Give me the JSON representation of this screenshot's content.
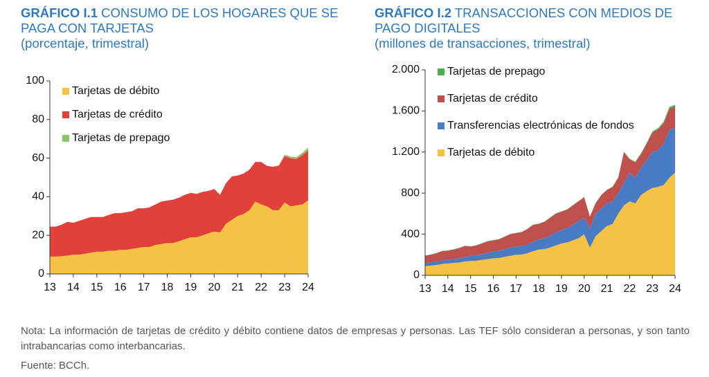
{
  "chart_data": [
    {
      "type": "stacked-area",
      "title_label": "GRÁFICO I.1",
      "title": "CONSUMO DE LOS HOGARES QUE SE PAGA CON TARJETAS",
      "subtitle": "(porcentaje, trimestral)",
      "x": [
        13,
        13.25,
        13.5,
        13.75,
        14,
        14.25,
        14.5,
        14.75,
        15,
        15.25,
        15.5,
        15.75,
        16,
        16.25,
        16.5,
        16.75,
        17,
        17.25,
        17.5,
        17.75,
        18,
        18.25,
        18.5,
        18.75,
        19,
        19.25,
        19.5,
        19.75,
        20,
        20.25,
        20.5,
        20.75,
        21,
        21.25,
        21.5,
        21.75,
        22,
        22.25,
        22.5,
        22.75,
        23,
        23.25,
        23.5,
        23.75,
        24
      ],
      "xlim": [
        13,
        24
      ],
      "xticks": [
        13,
        14,
        15,
        16,
        17,
        18,
        19,
        20,
        21,
        22,
        23,
        24
      ],
      "ylim": [
        0,
        100
      ],
      "yticks": [
        0,
        20,
        40,
        60,
        80,
        100
      ],
      "legend": "top-left",
      "legend_reversed": false,
      "series": [
        {
          "name": "Tarjetas de débito",
          "color": "#f5c243",
          "values": [
            9,
            9,
            9.2,
            9.5,
            10,
            10,
            10.5,
            11,
            11.5,
            11.5,
            12,
            12,
            12.5,
            12.5,
            13,
            13.5,
            14,
            14,
            15,
            15.5,
            16,
            16,
            17,
            18,
            19,
            19,
            20,
            21,
            22,
            21.5,
            26,
            28,
            30,
            31,
            33,
            37.5,
            36,
            35,
            33,
            33,
            37,
            35,
            35.5,
            36,
            38
          ]
        },
        {
          "name": "Tarjetas de crédito",
          "color": "#e2403a",
          "values": [
            15.5,
            15.5,
            16.3,
            17.5,
            16.5,
            17.5,
            18,
            18.5,
            18,
            18,
            18.5,
            19.5,
            19,
            19.5,
            19.5,
            20.5,
            20,
            20.5,
            21,
            22,
            22,
            22.5,
            22.5,
            23,
            23,
            22.5,
            22.5,
            22,
            22,
            19.5,
            21,
            22.5,
            21,
            21,
            21,
            20.5,
            22,
            21,
            22.5,
            23,
            24,
            25,
            24,
            25.5,
            26
          ]
        },
        {
          "name": "Tarjetas de prepago",
          "color": "#8fc26a",
          "values": [
            0,
            0,
            0,
            0,
            0,
            0,
            0,
            0,
            0,
            0,
            0,
            0,
            0,
            0,
            0,
            0,
            0,
            0,
            0,
            0,
            0,
            0,
            0,
            0,
            0,
            0,
            0,
            0,
            0,
            0,
            0,
            0,
            0,
            0,
            0,
            0,
            0,
            0,
            0,
            0.3,
            0.8,
            0.8,
            1,
            1.2,
            1.5
          ]
        }
      ]
    },
    {
      "type": "stacked-area",
      "title_label": "GRÁFICO I.2",
      "title": "TRANSACCIONES CON MEDIOS DE PAGO DIGITALES",
      "subtitle": "(millones de transacciones, trimestral)",
      "x": [
        13,
        13.25,
        13.5,
        13.75,
        14,
        14.25,
        14.5,
        14.75,
        15,
        15.25,
        15.5,
        15.75,
        16,
        16.25,
        16.5,
        16.75,
        17,
        17.25,
        17.5,
        17.75,
        18,
        18.25,
        18.5,
        18.75,
        19,
        19.25,
        19.5,
        19.75,
        20,
        20.25,
        20.5,
        20.75,
        21,
        21.25,
        21.5,
        21.75,
        22,
        22.25,
        22.5,
        22.75,
        23,
        23.25,
        23.5,
        23.75,
        24
      ],
      "xlim": [
        13,
        24
      ],
      "xticks": [
        13,
        14,
        15,
        16,
        17,
        18,
        19,
        20,
        21,
        22,
        23,
        24
      ],
      "ylim": [
        0,
        2000
      ],
      "yticks": [
        0,
        400,
        800,
        {
          "value": 1200,
          "label": "1.200"
        },
        {
          "value": 1600,
          "label": "1.600"
        },
        {
          "value": 2000,
          "label": "2.000"
        }
      ],
      "legend": "top-left",
      "legend_reversed": true,
      "series": [
        {
          "name": "Tarjetas de débito",
          "color": "#f5c243",
          "values": [
            90,
            95,
            100,
            110,
            115,
            120,
            125,
            135,
            140,
            142,
            150,
            158,
            165,
            168,
            180,
            190,
            200,
            202,
            215,
            235,
            250,
            255,
            270,
            290,
            310,
            320,
            340,
            360,
            400,
            270,
            380,
            430,
            480,
            500,
            600,
            680,
            720,
            700,
            780,
            820,
            850,
            860,
            880,
            950,
            1000
          ]
        },
        {
          "name": "Transferencias electrónicas de fondos",
          "color": "#4a7cc5",
          "values": [
            30,
            30,
            35,
            35,
            35,
            38,
            40,
            43,
            50,
            53,
            55,
            60,
            65,
            72,
            75,
            80,
            80,
            83,
            85,
            90,
            100,
            105,
            115,
            130,
            130,
            140,
            150,
            170,
            160,
            190,
            220,
            220,
            220,
            220,
            200,
            220,
            280,
            250,
            270,
            300,
            350,
            360,
            400,
            470,
            430
          ]
        },
        {
          "name": "Tarjetas de crédito",
          "color": "#c0504d",
          "values": [
            70,
            75,
            80,
            90,
            90,
            92,
            100,
            107,
            90,
            95,
            105,
            112,
            110,
            110,
            120,
            130,
            130,
            135,
            150,
            165,
            150,
            160,
            175,
            180,
            180,
            180,
            190,
            190,
            200,
            110,
            100,
            130,
            130,
            140,
            150,
            300,
            130,
            150,
            130,
            160,
            190,
            200,
            200,
            200,
            210
          ]
        },
        {
          "name": "Tarjetas de prepago",
          "color": "#4caf50",
          "values": [
            3,
            3,
            3,
            3,
            3,
            3,
            3,
            3,
            3,
            3,
            3,
            3,
            3,
            3,
            3,
            3,
            3,
            3,
            3,
            3,
            3,
            3,
            3,
            3,
            3,
            3,
            3,
            3,
            3,
            3,
            3,
            3,
            3,
            3,
            3,
            3,
            5,
            5,
            8,
            8,
            10,
            12,
            15,
            18,
            20
          ]
        }
      ]
    }
  ],
  "note": "Nota: La información de tarjetas de crédito y débito contiene datos de empresas y personas. Las TEF sólo consideran a personas, y son tanto intrabancarias como interbancarias.",
  "source": "Fuente: BCCh."
}
